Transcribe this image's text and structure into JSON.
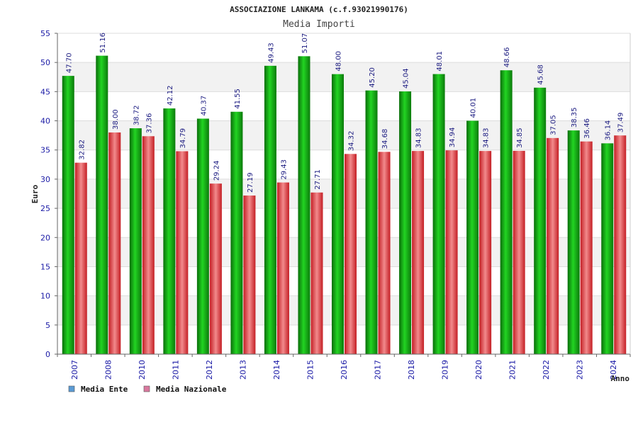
{
  "chart_data": {
    "type": "bar",
    "title": "ASSOCIAZIONE LANKAMA (c.f.93021990176)",
    "subtitle": "Media Importi",
    "xlabel": "Anno",
    "ylabel": "Euro",
    "ylim": [
      0,
      55
    ],
    "yticks": [
      0,
      5,
      10,
      15,
      20,
      25,
      30,
      35,
      40,
      45,
      50,
      55
    ],
    "grid": true,
    "legend_position": "bottom-left",
    "categories": [
      "2007",
      "2008",
      "2010",
      "2011",
      "2012",
      "2013",
      "2014",
      "2015",
      "2016",
      "2017",
      "2018",
      "2019",
      "2020",
      "2021",
      "2022",
      "2023",
      "2024"
    ],
    "series": [
      {
        "name": "Media Ente",
        "legend_color": "#5b9bd5",
        "bar_color": "#1a9e1a",
        "values": [
          47.7,
          51.16,
          38.72,
          42.12,
          40.37,
          41.55,
          49.43,
          51.07,
          48.0,
          45.2,
          45.04,
          48.01,
          40.01,
          48.66,
          45.68,
          38.35,
          36.14
        ],
        "labels": [
          "47.70",
          "51.16",
          "38.72",
          "42.12",
          "40.37",
          "41.55",
          "49.43",
          "51.07",
          "48.00",
          "45.20",
          "45.04",
          "48.01",
          "40.01",
          "48.66",
          "45.68",
          "38.35",
          "36.14"
        ]
      },
      {
        "name": "Media Nazionale",
        "legend_color": "#d9789e",
        "bar_color": "#e03a3e",
        "values": [
          32.82,
          38.0,
          37.36,
          34.79,
          29.24,
          27.19,
          29.43,
          27.71,
          34.32,
          34.68,
          34.83,
          34.94,
          34.83,
          34.85,
          37.05,
          36.46,
          37.49
        ],
        "labels": [
          "32.82",
          "38.00",
          "37.36",
          "34.79",
          "29.24",
          "27.19",
          "29.43",
          "27.71",
          "34.32",
          "34.68",
          "34.83",
          "34.94",
          "34.83",
          "34.85",
          "37.05",
          "36.46",
          "37.49"
        ]
      }
    ]
  }
}
